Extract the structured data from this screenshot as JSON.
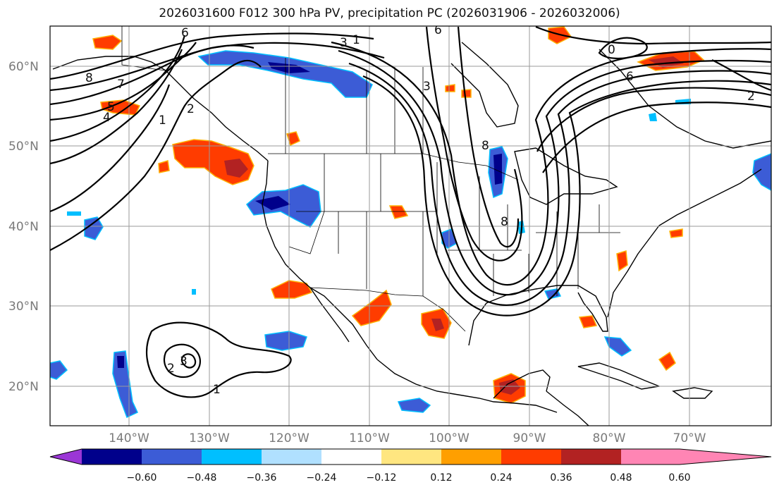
{
  "title": "2026031600 F012 300 hPa PV, precipitation PC (2026031906 - 2026032006)",
  "map": {
    "lat_labels": [
      "60°N",
      "50°N",
      "40°N",
      "30°N",
      "20°N"
    ],
    "lon_labels": [
      "140°W",
      "130°W",
      "120°W",
      "110°W",
      "100°W",
      "90°W",
      "80°W",
      "70°W"
    ],
    "pv_contour_labels": [
      "6",
      "8",
      "7",
      "5",
      "4",
      "1",
      "2",
      "3",
      "1",
      "6",
      "3",
      "8",
      "8",
      "0",
      "6",
      "2",
      "3",
      "2",
      "1"
    ],
    "pv_contour_color": "#000000",
    "coastline_color": "#000000",
    "gridline_color": "#9a9a9a"
  },
  "colorbar": {
    "ticks": [
      "−0.60",
      "−0.48",
      "−0.36",
      "−0.24",
      "−0.12",
      "0.12",
      "0.24",
      "0.36",
      "0.48",
      "0.60"
    ],
    "colors": [
      "#9b36d6",
      "#00008b",
      "#3c5cd6",
      "#00bfff",
      "#b0e0ff",
      "#ffffff",
      "#ffe680",
      "#ff9f00",
      "#ff3c00",
      "#b22222",
      "#ff85b4"
    ],
    "extend": "both"
  }
}
